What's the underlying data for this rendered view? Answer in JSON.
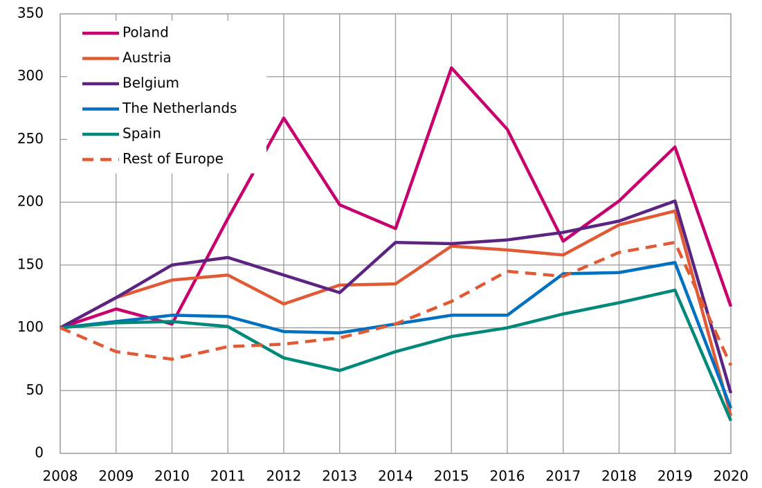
{
  "chart_data": {
    "type": "line",
    "x": [
      2008,
      2009,
      2010,
      2011,
      2012,
      2013,
      2014,
      2015,
      2016,
      2017,
      2018,
      2019,
      2020
    ],
    "xlim": [
      2008,
      2020
    ],
    "xticks": [
      2008,
      2009,
      2010,
      2011,
      2012,
      2013,
      2014,
      2015,
      2016,
      2017,
      2018,
      2019,
      2020
    ],
    "ylim": [
      0,
      350
    ],
    "yticks": [
      0,
      50,
      100,
      150,
      200,
      250,
      300,
      350
    ],
    "grid": true,
    "legend": "upper left",
    "series": [
      {
        "name": "Poland",
        "color": "#c8006e",
        "values": [
          100,
          115,
          103,
          187,
          267,
          198,
          179,
          307,
          258,
          169,
          201,
          244,
          117
        ]
      },
      {
        "name": "Austria",
        "color": "#e05a35",
        "values": [
          100,
          124,
          138,
          142,
          119,
          134,
          135,
          165,
          162,
          158,
          182,
          193,
          30
        ]
      },
      {
        "name": "Belgium",
        "color": "#5b2482",
        "values": [
          100,
          124,
          150,
          156,
          142,
          128,
          168,
          167,
          170,
          176,
          185,
          201,
          48
        ]
      },
      {
        "name": "The Netherlands",
        "color": "#0070c0",
        "values": [
          100,
          105,
          110,
          109,
          97,
          96,
          103,
          110,
          110,
          143,
          144,
          152,
          36
        ]
      },
      {
        "name": "Spain",
        "color": "#00897b",
        "values": [
          100,
          104,
          105,
          101,
          76,
          66,
          81,
          93,
          100,
          111,
          120,
          130,
          26
        ]
      },
      {
        "name": "Rest of Europe",
        "color": "#e05a35",
        "dashed": true,
        "values": [
          100,
          81,
          75,
          85,
          87,
          92,
          103,
          121,
          145,
          141,
          160,
          168,
          70
        ]
      }
    ]
  }
}
